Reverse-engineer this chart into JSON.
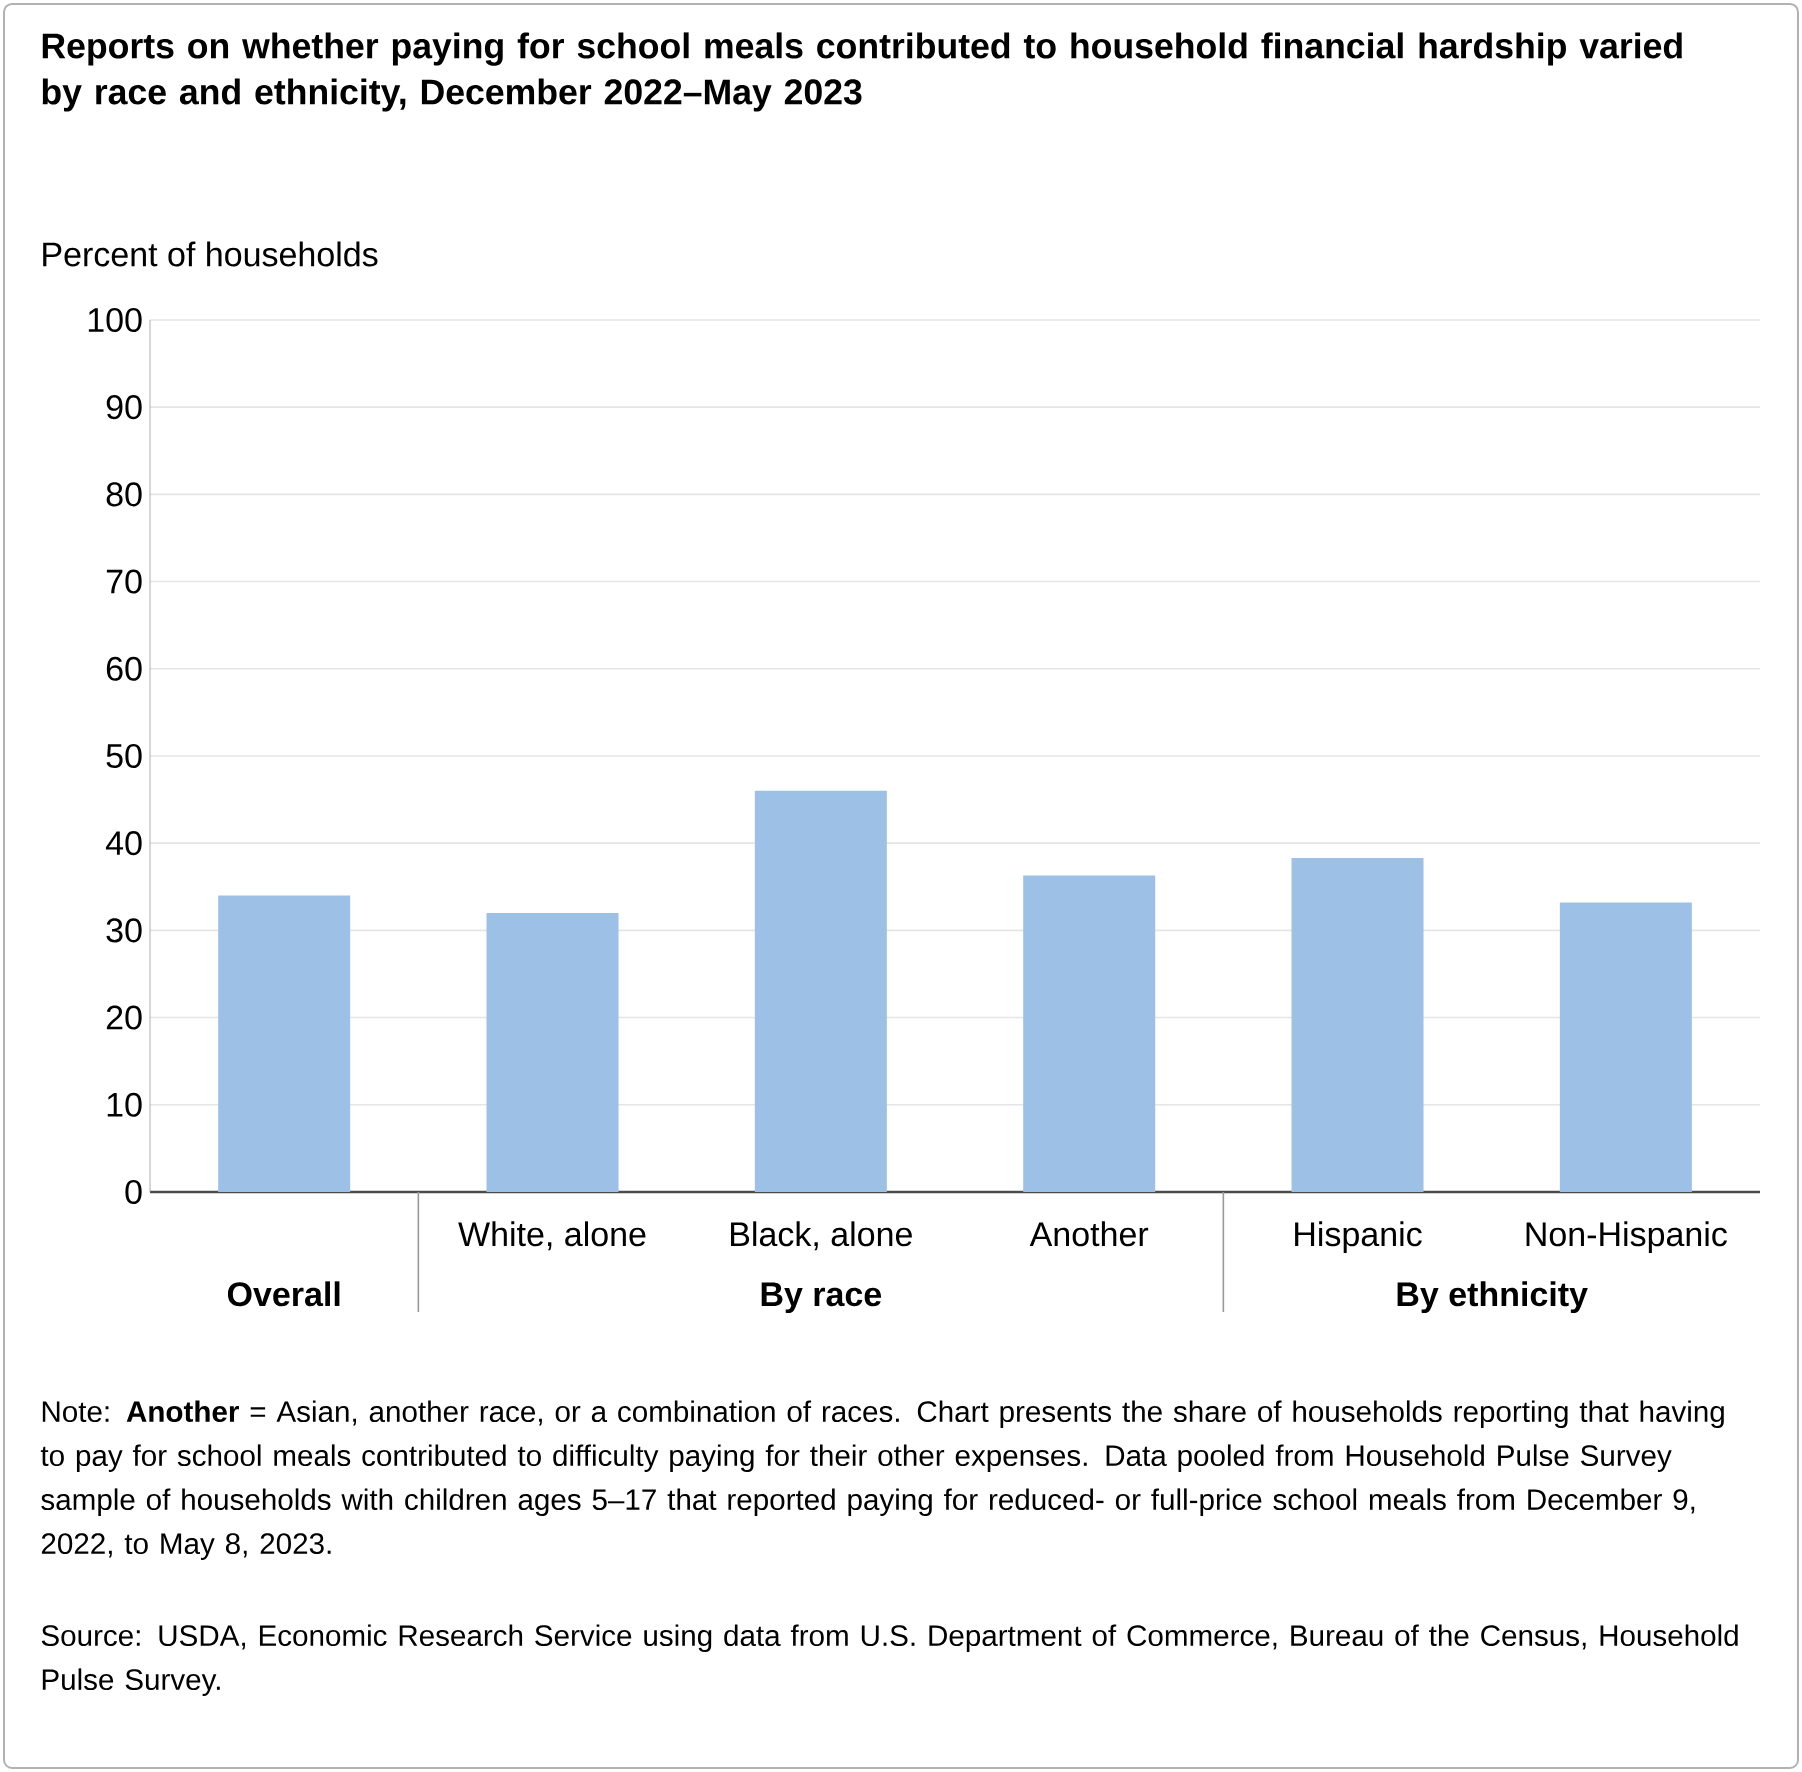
{
  "chart_data": {
    "type": "bar",
    "title": "Reports on whether paying for school meals contributed to household financial hardship varied by race and ethnicity, December 2022–May 2023",
    "ylabel": "Percent of households",
    "categories": [
      "Overall",
      "White, alone",
      "Black, alone",
      "Another",
      "Hispanic",
      "Non-Hispanic"
    ],
    "values": [
      34,
      32,
      46,
      36.3,
      38.3,
      33.2
    ],
    "color": "#9dc1e6",
    "ylim": [
      0,
      100
    ],
    "yticks": [
      0,
      10,
      20,
      30,
      40,
      50,
      60,
      70,
      80,
      90,
      100
    ],
    "grid": "y",
    "annotations": [
      "By race",
      "By ethnicity",
      "Note: **Another** = Asian, another race, or a combination of races. Chart presents the share of households reporting that having to pay for school meals contributed to difficulty paying for their other expenses. Data pooled from Household Pulse Survey sample of households with children ages 5–17 that reported paying for reduced- or full-price school meals from December 9, 2022, to May 8, 2023.",
      "Source: USDA, Economic Research Service using data from U.S. Department of Commerce, Bureau of the Census, Household Pulse Survey."
    ]
  }
}
